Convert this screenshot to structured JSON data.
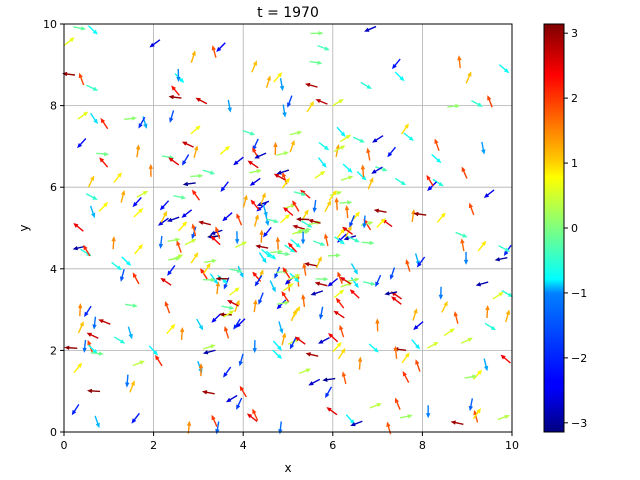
{
  "chart_data": {
    "type": "quiver",
    "title": "t = 1970",
    "xlabel": "x",
    "ylabel": "y",
    "xlim": [
      0,
      10
    ],
    "ylim": [
      0,
      10
    ],
    "xticks": [
      "0",
      "2",
      "4",
      "6",
      "8",
      "10"
    ],
    "yticks": [
      "0",
      "2",
      "4",
      "6",
      "8",
      "10"
    ],
    "grid": true,
    "colormap": "jet",
    "colorbar": {
      "range": [
        -3.14159,
        3.14159
      ],
      "ticks": [
        "−3",
        "−2",
        "−1",
        "0",
        "1",
        "2",
        "3"
      ],
      "tick_values": [
        -3,
        -2,
        -1,
        0,
        1,
        2,
        3
      ]
    },
    "arrow_count": 400,
    "cluster": {
      "center": [
        4.8,
        4.3
      ],
      "spread": 1.3,
      "fraction": 0.35
    },
    "colors": {
      "grid": "#b0b0b0",
      "axes": "#000000",
      "background": "#ffffff"
    }
  }
}
